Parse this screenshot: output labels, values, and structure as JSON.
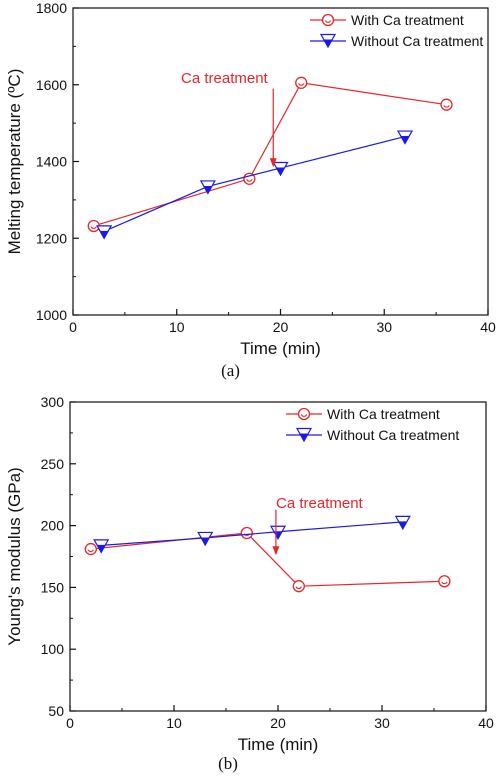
{
  "chart_data": [
    {
      "type": "line",
      "panel_label": "(a)",
      "xlabel": "Time (min)",
      "ylabel": "Melting temperature (ºC)",
      "xlim": [
        0,
        40
      ],
      "ylim": [
        1000,
        1800
      ],
      "xticks": [
        0,
        10,
        20,
        30,
        40
      ],
      "yticks": [
        1000,
        1200,
        1400,
        1600,
        1800
      ],
      "grid": false,
      "legend_position": "top-right",
      "series": [
        {
          "name": "With Ca treatment",
          "color": "#e8262a",
          "marker": "circle-open",
          "x": [
            2,
            17,
            22,
            36
          ],
          "y": [
            1232,
            1355,
            1605,
            1548
          ]
        },
        {
          "name": "Without Ca treatment",
          "color": "#1a1ae6",
          "marker": "triangle-down-half",
          "x": [
            3,
            13,
            20,
            32
          ],
          "y": [
            1218,
            1335,
            1383,
            1465
          ]
        }
      ],
      "annotation": {
        "text": "Ca treatment",
        "color": "#e8262a",
        "arrow_x": 19.3,
        "arrow_y_from": 1590,
        "arrow_y_to": 1385
      }
    },
    {
      "type": "line",
      "panel_label": "(b)",
      "xlabel": "Time (min)",
      "ylabel": "Young's modulus (GPa)",
      "xlim": [
        0,
        40
      ],
      "ylim": [
        50,
        300
      ],
      "xticks": [
        0,
        10,
        20,
        30,
        40
      ],
      "yticks": [
        50,
        100,
        150,
        200,
        250,
        300
      ],
      "grid": false,
      "legend_position": "top-right",
      "series": [
        {
          "name": "With Ca treatment",
          "color": "#e8262a",
          "marker": "circle-open",
          "x": [
            2,
            17,
            22,
            36
          ],
          "y": [
            181,
            194,
            151,
            155
          ]
        },
        {
          "name": "Without Ca treatment",
          "color": "#1a1ae6",
          "marker": "triangle-down-half",
          "x": [
            3,
            13,
            20,
            32
          ],
          "y": [
            184,
            190,
            195,
            203
          ]
        }
      ],
      "annotation": {
        "text": "Ca treatment",
        "color": "#e8262a",
        "arrow_x": 19.8,
        "arrow_y_from": 213,
        "arrow_y_to": 176
      }
    }
  ]
}
